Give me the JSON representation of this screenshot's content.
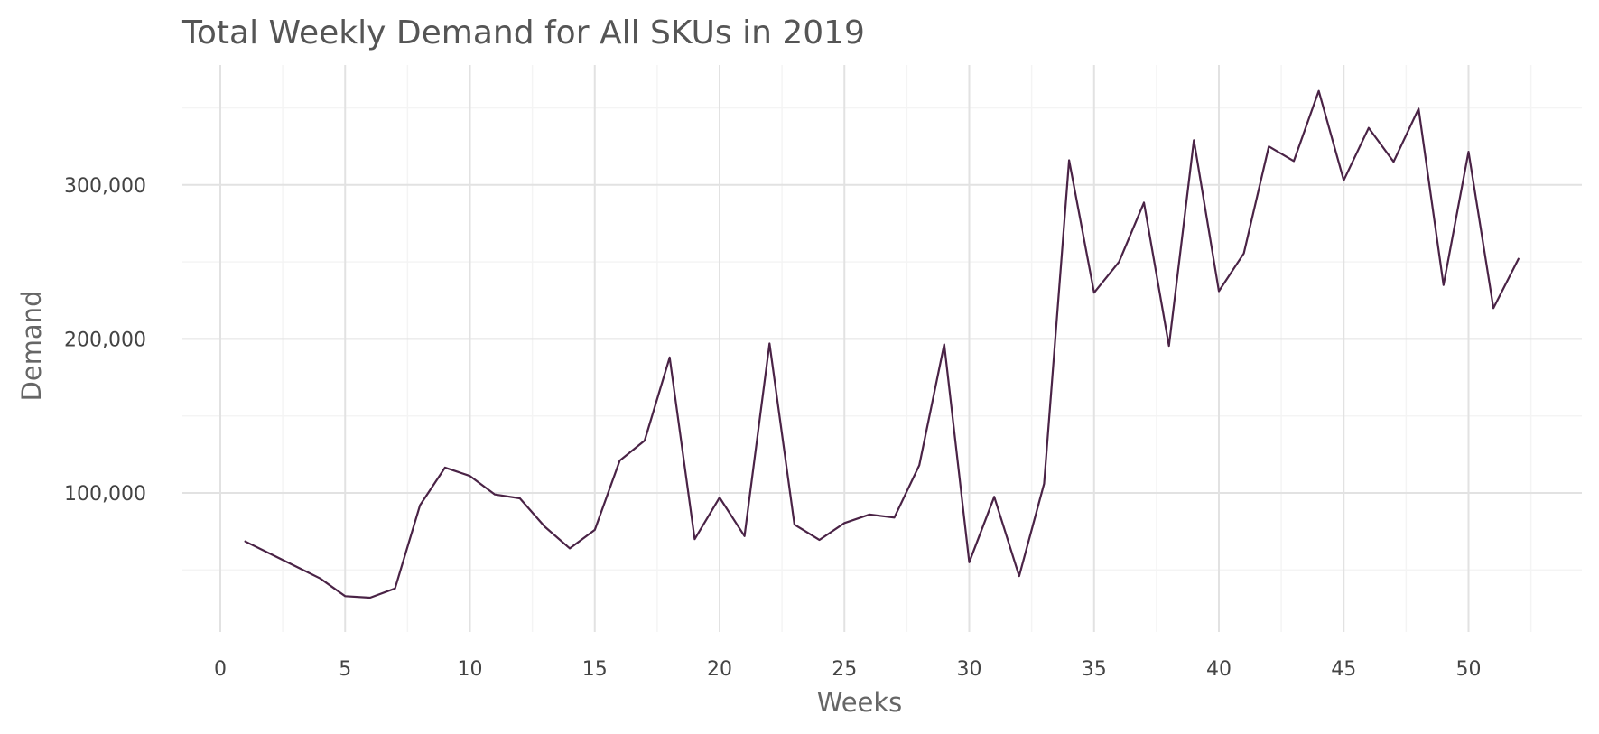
{
  "chart_data": {
    "type": "line",
    "title": "Total Weekly Demand for All SKUs in 2019",
    "xlabel": "Weeks",
    "ylabel": "Demand",
    "xlim": [
      0,
      54
    ],
    "ylim": [
      17000,
      368000
    ],
    "x_ticks": [
      0,
      5,
      10,
      15,
      20,
      25,
      30,
      35,
      40,
      45,
      50
    ],
    "x_tick_labels": [
      "0",
      "5",
      "10",
      "15",
      "20",
      "25",
      "30",
      "35",
      "40",
      "45",
      "50"
    ],
    "y_ticks": [
      100000,
      200000,
      300000
    ],
    "y_tick_labels": [
      "100,000",
      "200,000",
      "300,000"
    ],
    "grid": true,
    "legend": "none",
    "line_color": "#4a2346",
    "series": [
      {
        "x": [
          1,
          2,
          3,
          4,
          5,
          6,
          7,
          8,
          9,
          10,
          11,
          12,
          13,
          14,
          15,
          16,
          17,
          18,
          19,
          20,
          21,
          22,
          23,
          24,
          25,
          26,
          27,
          28,
          29,
          30,
          31,
          32,
          33,
          34,
          35,
          36,
          37,
          38,
          39,
          40,
          41,
          42,
          43,
          44,
          45,
          46,
          47,
          48,
          49,
          50,
          51,
          52
        ],
        "values": [
          68500,
          60500,
          52500,
          44500,
          33000,
          32000,
          38000,
          92000,
          116500,
          111000,
          99000,
          96500,
          78000,
          64000,
          76000,
          121000,
          134000,
          188000,
          70000,
          97000,
          72000,
          197000,
          79500,
          69500,
          80500,
          86000,
          84000,
          118000,
          196500,
          55000,
          97500,
          46000,
          106000,
          316000,
          230000,
          250000,
          288500,
          195500,
          329000,
          231000,
          255500,
          325000,
          315500,
          361000,
          303000,
          337000,
          315000,
          349500,
          235000,
          321500,
          220000,
          252000
        ]
      }
    ]
  }
}
